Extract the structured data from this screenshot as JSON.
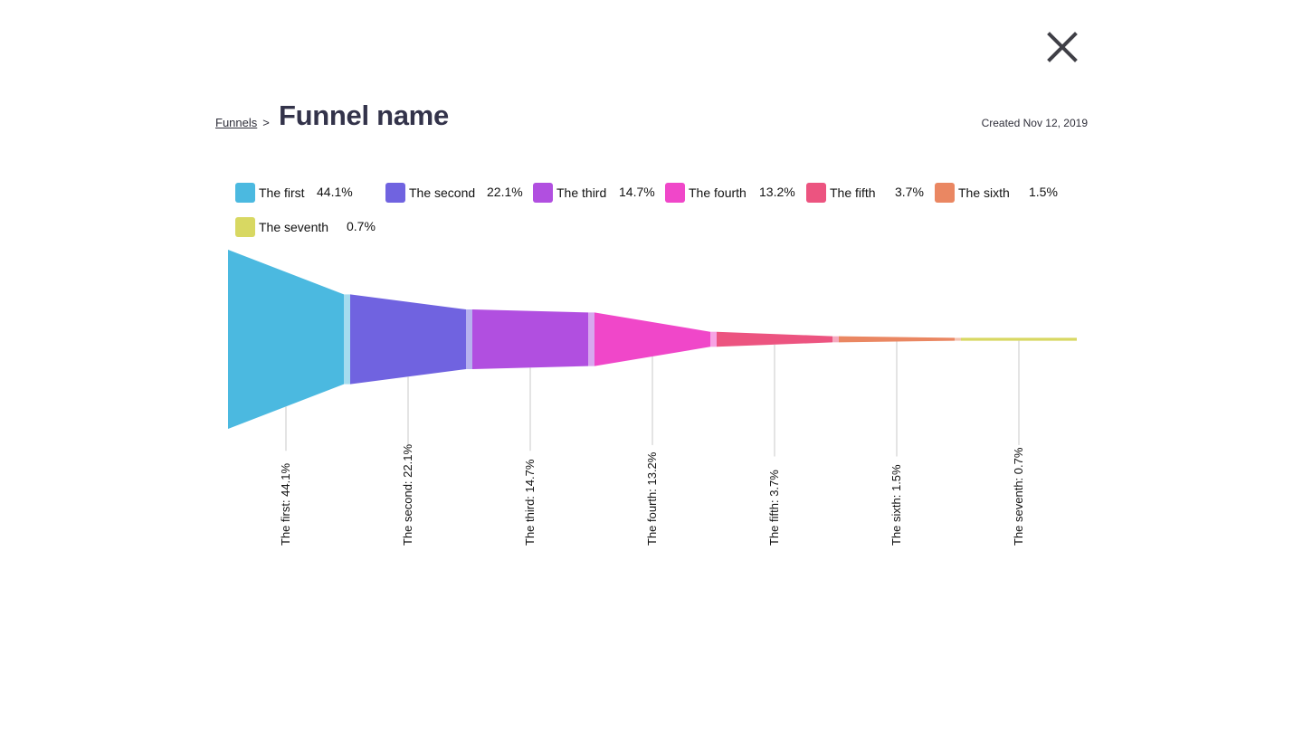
{
  "header": {
    "breadcrumb_link": "Funnels",
    "breadcrumb_separator": ">",
    "title": "Funnel name",
    "created": "Created Nov 12, 2019"
  },
  "icons": {
    "close": "close-icon"
  },
  "colors": {
    "first": "#4bb9e0",
    "second": "#7063e0",
    "third": "#b14fe0",
    "fourth": "#f047c9",
    "fifth": "#ec5480",
    "sixth": "#ea8762",
    "seventh": "#d8d862"
  },
  "chart_data": {
    "type": "funnel",
    "categories": [
      "The first",
      "The second",
      "The third",
      "The fourth",
      "The fifth",
      "The sixth",
      "The seventh"
    ],
    "values": [
      44.1,
      22.1,
      14.7,
      13.2,
      3.7,
      1.5,
      0.7
    ],
    "value_labels": [
      "44.1%",
      "22.1%",
      "14.7%",
      "13.2%",
      "3.7%",
      "1.5%",
      "0.7%"
    ],
    "data_labels": [
      "The first: 44.1%",
      "The second: 22.1%",
      "The third: 14.7%",
      "The fourth: 13.2%",
      "The fifth: 3.7%",
      "The sixth: 1.5%",
      "The seventh: 0.7%"
    ],
    "colors": [
      "#4bb9e0",
      "#7063e0",
      "#b14fe0",
      "#f047c9",
      "#ec5480",
      "#ea8762",
      "#d8d862"
    ],
    "legend_position": "top-left",
    "grid": false
  }
}
